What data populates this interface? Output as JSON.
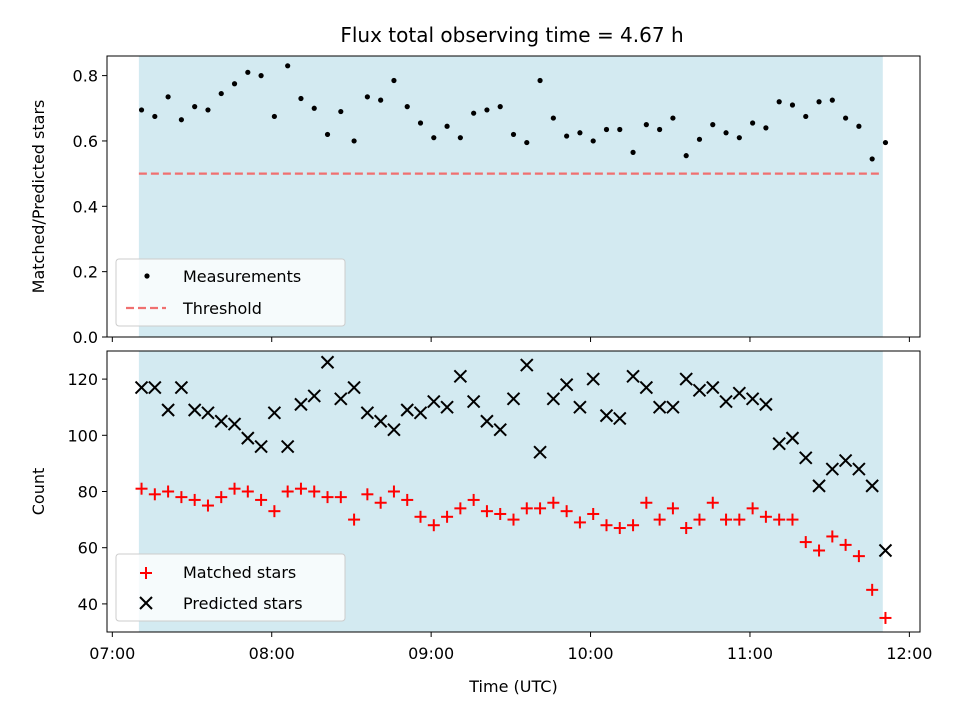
{
  "chart_data": {
    "title": "Flux total observing time = 4.67 h",
    "shared_x": {
      "label": "Time (UTC)",
      "range": [
        "06:58",
        "12:04"
      ],
      "ticks": [
        "07:00",
        "08:00",
        "09:00",
        "10:00",
        "11:00",
        "12:00"
      ],
      "shaded_interval": [
        "07:10",
        "11:50"
      ],
      "shade_color": "#d3eaf1"
    },
    "panels": [
      {
        "type": "scatter",
        "ylabel": "Matched/Predicted stars",
        "ylim": [
          0,
          0.86
        ],
        "yticks": [
          "0.0",
          "0.2",
          "0.4",
          "0.6",
          "0.8"
        ],
        "series": [
          {
            "name": "Measurements",
            "marker": "dot",
            "color": "#000000",
            "points": [
              [
                "07:11",
                0.695
              ],
              [
                "07:16",
                0.675
              ],
              [
                "07:21",
                0.735
              ],
              [
                "07:26",
                0.665
              ],
              [
                "07:31",
                0.705
              ],
              [
                "07:36",
                0.695
              ],
              [
                "07:41",
                0.745
              ],
              [
                "07:46",
                0.775
              ],
              [
                "07:51",
                0.81
              ],
              [
                "07:56",
                0.8
              ],
              [
                "08:01",
                0.675
              ],
              [
                "08:06",
                0.83
              ],
              [
                "08:11",
                0.73
              ],
              [
                "08:16",
                0.7
              ],
              [
                "08:21",
                0.62
              ],
              [
                "08:26",
                0.69
              ],
              [
                "08:31",
                0.6
              ],
              [
                "08:36",
                0.735
              ],
              [
                "08:41",
                0.725
              ],
              [
                "08:46",
                0.785
              ],
              [
                "08:51",
                0.705
              ],
              [
                "08:56",
                0.655
              ],
              [
                "09:01",
                0.61
              ],
              [
                "09:06",
                0.645
              ],
              [
                "09:11",
                0.61
              ],
              [
                "09:16",
                0.685
              ],
              [
                "09:21",
                0.695
              ],
              [
                "09:26",
                0.705
              ],
              [
                "09:31",
                0.62
              ],
              [
                "09:36",
                0.595
              ],
              [
                "09:41",
                0.785
              ],
              [
                "09:46",
                0.67
              ],
              [
                "09:51",
                0.615
              ],
              [
                "09:56",
                0.625
              ],
              [
                "10:01",
                0.6
              ],
              [
                "10:06",
                0.635
              ],
              [
                "10:11",
                0.635
              ],
              [
                "10:16",
                0.565
              ],
              [
                "10:21",
                0.65
              ],
              [
                "10:26",
                0.635
              ],
              [
                "10:31",
                0.67
              ],
              [
                "10:36",
                0.555
              ],
              [
                "10:41",
                0.605
              ],
              [
                "10:46",
                0.65
              ],
              [
                "10:51",
                0.625
              ],
              [
                "10:56",
                0.61
              ],
              [
                "11:01",
                0.655
              ],
              [
                "11:06",
                0.64
              ],
              [
                "11:11",
                0.72
              ],
              [
                "11:16",
                0.71
              ],
              [
                "11:21",
                0.675
              ],
              [
                "11:26",
                0.72
              ],
              [
                "11:31",
                0.725
              ],
              [
                "11:36",
                0.67
              ],
              [
                "11:41",
                0.645
              ],
              [
                "11:46",
                0.545
              ],
              [
                "11:51",
                0.595
              ]
            ]
          },
          {
            "name": "Threshold",
            "type": "line",
            "style": "dashed",
            "color": "#f07070",
            "value": 0.5,
            "x_range": [
              "07:10",
              "11:50"
            ]
          }
        ],
        "legend": "lower-left"
      },
      {
        "type": "scatter",
        "ylabel": "Count",
        "ylim": [
          30,
          130
        ],
        "yticks": [
          "40",
          "60",
          "80",
          "100",
          "120"
        ],
        "series": [
          {
            "name": "Matched stars",
            "marker": "plus",
            "color": "#ff0000",
            "points": [
              [
                "07:11",
                81
              ],
              [
                "07:16",
                79
              ],
              [
                "07:21",
                80
              ],
              [
                "07:26",
                78
              ],
              [
                "07:31",
                77
              ],
              [
                "07:36",
                75
              ],
              [
                "07:41",
                78
              ],
              [
                "07:46",
                81
              ],
              [
                "07:51",
                80
              ],
              [
                "07:56",
                77
              ],
              [
                "08:01",
                73
              ],
              [
                "08:06",
                80
              ],
              [
                "08:11",
                81
              ],
              [
                "08:16",
                80
              ],
              [
                "08:21",
                78
              ],
              [
                "08:26",
                78
              ],
              [
                "08:31",
                70
              ],
              [
                "08:36",
                79
              ],
              [
                "08:41",
                76
              ],
              [
                "08:46",
                80
              ],
              [
                "08:51",
                77
              ],
              [
                "08:56",
                71
              ],
              [
                "09:01",
                68
              ],
              [
                "09:06",
                71
              ],
              [
                "09:11",
                74
              ],
              [
                "09:16",
                77
              ],
              [
                "09:21",
                73
              ],
              [
                "09:26",
                72
              ],
              [
                "09:31",
                70
              ],
              [
                "09:36",
                74
              ],
              [
                "09:41",
                74
              ],
              [
                "09:46",
                76
              ],
              [
                "09:51",
                73
              ],
              [
                "09:56",
                69
              ],
              [
                "10:01",
                72
              ],
              [
                "10:06",
                68
              ],
              [
                "10:11",
                67
              ],
              [
                "10:16",
                68
              ],
              [
                "10:21",
                76
              ],
              [
                "10:26",
                70
              ],
              [
                "10:31",
                74
              ],
              [
                "10:36",
                67
              ],
              [
                "10:41",
                70
              ],
              [
                "10:46",
                76
              ],
              [
                "10:51",
                70
              ],
              [
                "10:56",
                70
              ],
              [
                "11:01",
                74
              ],
              [
                "11:06",
                71
              ],
              [
                "11:11",
                70
              ],
              [
                "11:16",
                70
              ],
              [
                "11:21",
                62
              ],
              [
                "11:26",
                59
              ],
              [
                "11:31",
                64
              ],
              [
                "11:36",
                61
              ],
              [
                "11:41",
                57
              ],
              [
                "11:46",
                45
              ],
              [
                "11:51",
                35
              ]
            ]
          },
          {
            "name": "Predicted stars",
            "marker": "x",
            "color": "#000000",
            "points": [
              [
                "07:11",
                117
              ],
              [
                "07:16",
                117
              ],
              [
                "07:21",
                109
              ],
              [
                "07:26",
                117
              ],
              [
                "07:31",
                109
              ],
              [
                "07:36",
                108
              ],
              [
                "07:41",
                105
              ],
              [
                "07:46",
                104
              ],
              [
                "07:51",
                99
              ],
              [
                "07:56",
                96
              ],
              [
                "08:01",
                108
              ],
              [
                "08:06",
                96
              ],
              [
                "08:11",
                111
              ],
              [
                "08:16",
                114
              ],
              [
                "08:21",
                126
              ],
              [
                "08:26",
                113
              ],
              [
                "08:31",
                117
              ],
              [
                "08:36",
                108
              ],
              [
                "08:41",
                105
              ],
              [
                "08:46",
                102
              ],
              [
                "08:51",
                109
              ],
              [
                "08:56",
                108
              ],
              [
                "09:01",
                112
              ],
              [
                "09:06",
                110
              ],
              [
                "09:11",
                121
              ],
              [
                "09:16",
                112
              ],
              [
                "09:21",
                105
              ],
              [
                "09:26",
                102
              ],
              [
                "09:31",
                113
              ],
              [
                "09:36",
                125
              ],
              [
                "09:41",
                94
              ],
              [
                "09:46",
                113
              ],
              [
                "09:51",
                118
              ],
              [
                "09:56",
                110
              ],
              [
                "10:01",
                120
              ],
              [
                "10:06",
                107
              ],
              [
                "10:11",
                106
              ],
              [
                "10:16",
                121
              ],
              [
                "10:21",
                117
              ],
              [
                "10:26",
                110
              ],
              [
                "10:31",
                110
              ],
              [
                "10:36",
                120
              ],
              [
                "10:41",
                116
              ],
              [
                "10:46",
                117
              ],
              [
                "10:51",
                112
              ],
              [
                "10:56",
                115
              ],
              [
                "11:01",
                113
              ],
              [
                "11:06",
                111
              ],
              [
                "11:11",
                97
              ],
              [
                "11:16",
                99
              ],
              [
                "11:21",
                92
              ],
              [
                "11:26",
                82
              ],
              [
                "11:31",
                88
              ],
              [
                "11:36",
                91
              ],
              [
                "11:41",
                88
              ],
              [
                "11:46",
                82
              ],
              [
                "11:51",
                59
              ]
            ]
          }
        ],
        "legend": "lower-left"
      }
    ]
  }
}
